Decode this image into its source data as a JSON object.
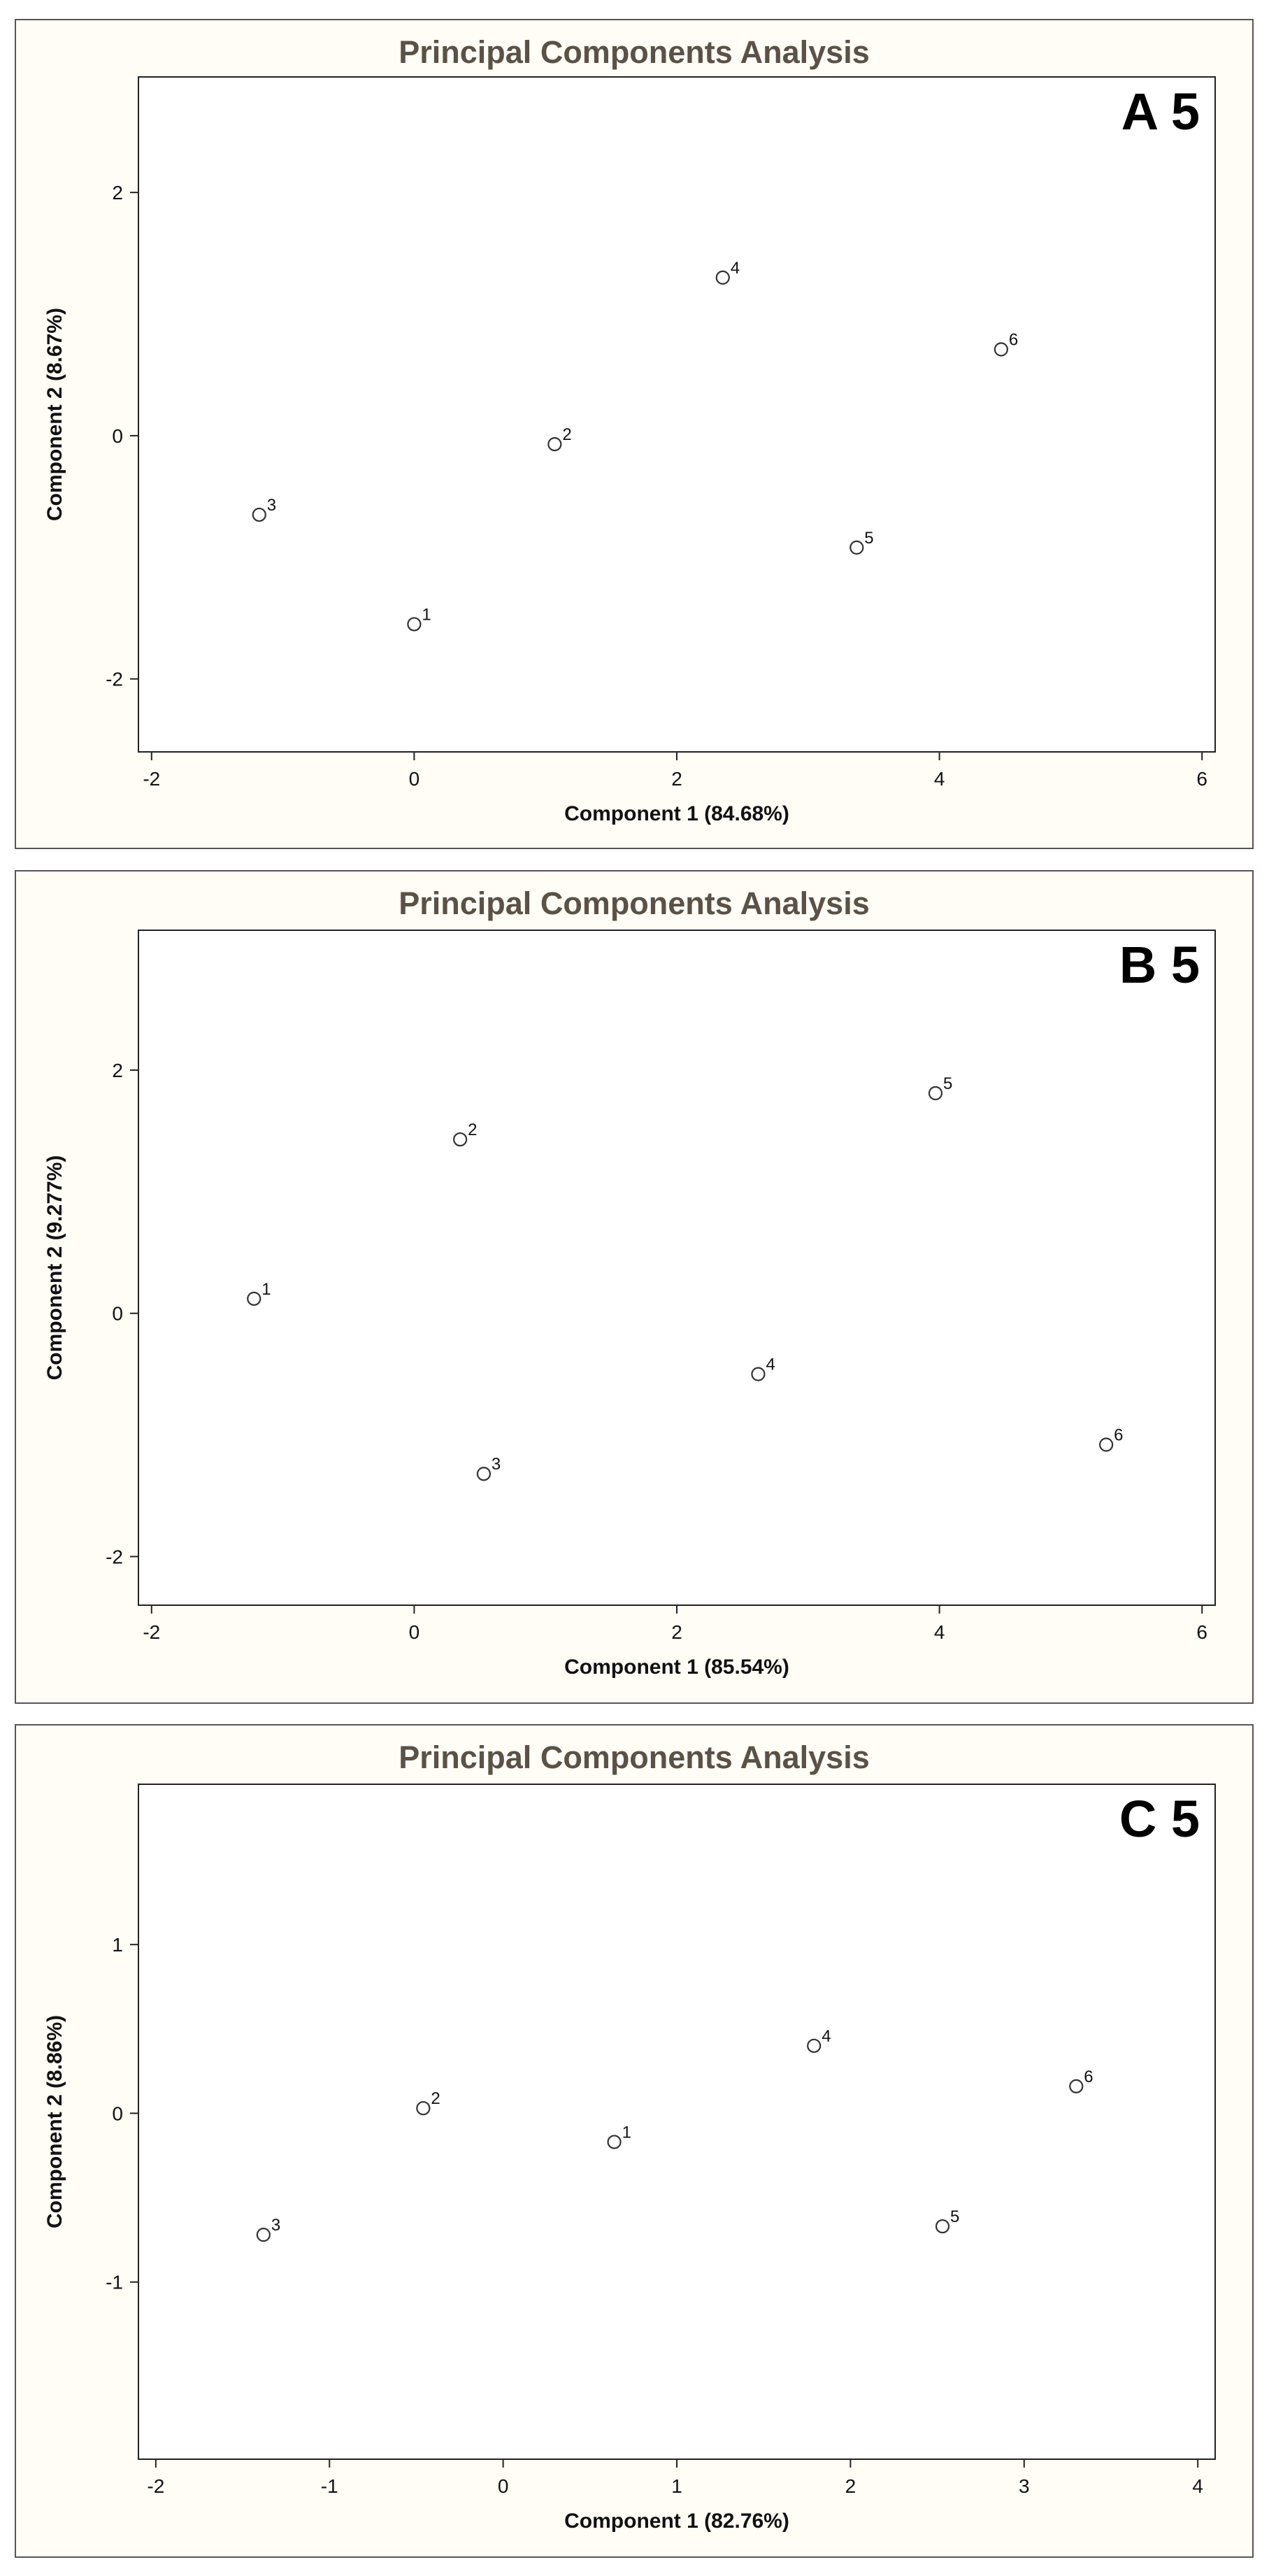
{
  "chart_data": [
    {
      "type": "scatter",
      "title": "Principal Components Analysis",
      "panel_label": "A 5",
      "xlabel": "Component 1 (84.68%)",
      "ylabel": "Component 2 (8.67%)",
      "xlim": [
        -2.1,
        6.1
      ],
      "ylim": [
        -2.6,
        2.95
      ],
      "xticks": [
        -2,
        0,
        2,
        4,
        6
      ],
      "yticks": [
        -2,
        0,
        2
      ],
      "grid": false,
      "points": [
        {
          "label": "1",
          "x": 0.0,
          "y": -1.55
        },
        {
          "label": "2",
          "x": 1.07,
          "y": -0.07
        },
        {
          "label": "3",
          "x": -1.18,
          "y": -0.65
        },
        {
          "label": "4",
          "x": 2.35,
          "y": 1.3
        },
        {
          "label": "5",
          "x": 3.37,
          "y": -0.92
        },
        {
          "label": "6",
          "x": 4.47,
          "y": 0.71
        }
      ]
    },
    {
      "type": "scatter",
      "title": "Principal Components Analysis",
      "panel_label": "B 5",
      "xlabel": "Component 1 (85.54%)",
      "ylabel": "Component 2 (9.277%)",
      "xlim": [
        -2.1,
        6.1
      ],
      "ylim": [
        -2.4,
        3.15
      ],
      "xticks": [
        -2,
        0,
        2,
        4,
        6
      ],
      "yticks": [
        -2,
        0,
        2
      ],
      "grid": false,
      "points": [
        {
          "label": "1",
          "x": -1.22,
          "y": 0.12
        },
        {
          "label": "2",
          "x": 0.35,
          "y": 1.43
        },
        {
          "label": "3",
          "x": 0.53,
          "y": -1.32
        },
        {
          "label": "4",
          "x": 2.62,
          "y": -0.5
        },
        {
          "label": "5",
          "x": 3.97,
          "y": 1.81
        },
        {
          "label": "6",
          "x": 5.27,
          "y": -1.08
        }
      ]
    },
    {
      "type": "scatter",
      "title": "Principal Components Analysis",
      "panel_label": "C 5",
      "xlabel": "Component 1 (82.76%)",
      "ylabel": "Component 2 (8.86%)",
      "xlim": [
        -2.1,
        4.1
      ],
      "ylim": [
        -2.05,
        1.95
      ],
      "xticks": [
        -2,
        -1,
        0,
        1,
        2,
        3,
        4
      ],
      "yticks": [
        -1,
        0,
        1
      ],
      "grid": false,
      "points": [
        {
          "label": "1",
          "x": 0.64,
          "y": -0.17
        },
        {
          "label": "2",
          "x": -0.46,
          "y": 0.03
        },
        {
          "label": "3",
          "x": -1.38,
          "y": -0.72
        },
        {
          "label": "4",
          "x": 1.79,
          "y": 0.4
        },
        {
          "label": "5",
          "x": 2.53,
          "y": -0.67
        },
        {
          "label": "6",
          "x": 3.3,
          "y": 0.16
        }
      ]
    }
  ]
}
